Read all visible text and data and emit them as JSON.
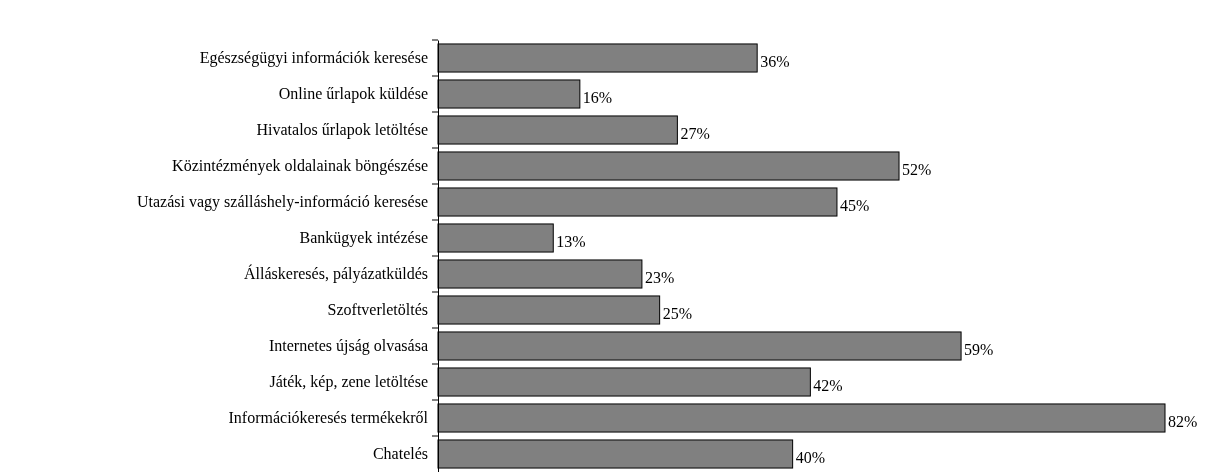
{
  "chart_data": {
    "type": "bar",
    "orientation": "horizontal",
    "categories": [
      "Egészségügyi információk keresése",
      "Online űrlapok küldése",
      "Hivatalos űrlapok letöltése",
      "Közintézmények oldalainak böngészése",
      "Utazási vagy szálláshely-információ keresése",
      "Bankügyek intézése",
      "Álláskeresés, pályázatküldés",
      "Szoftverletöltés",
      "Internetes újság olvasása",
      "Játék, kép, zene letöltése",
      "Információkeresés termékekről",
      "Chatelés"
    ],
    "values": [
      36,
      16,
      27,
      52,
      45,
      13,
      23,
      25,
      59,
      42,
      82,
      40
    ],
    "value_labels": [
      "36%",
      "16%",
      "27%",
      "52%",
      "45%",
      "13%",
      "23%",
      "25%",
      "59%",
      "42%",
      "82%",
      "40%"
    ],
    "color": "#808080",
    "xlim": [
      0,
      82
    ],
    "tick_labels": "y"
  }
}
